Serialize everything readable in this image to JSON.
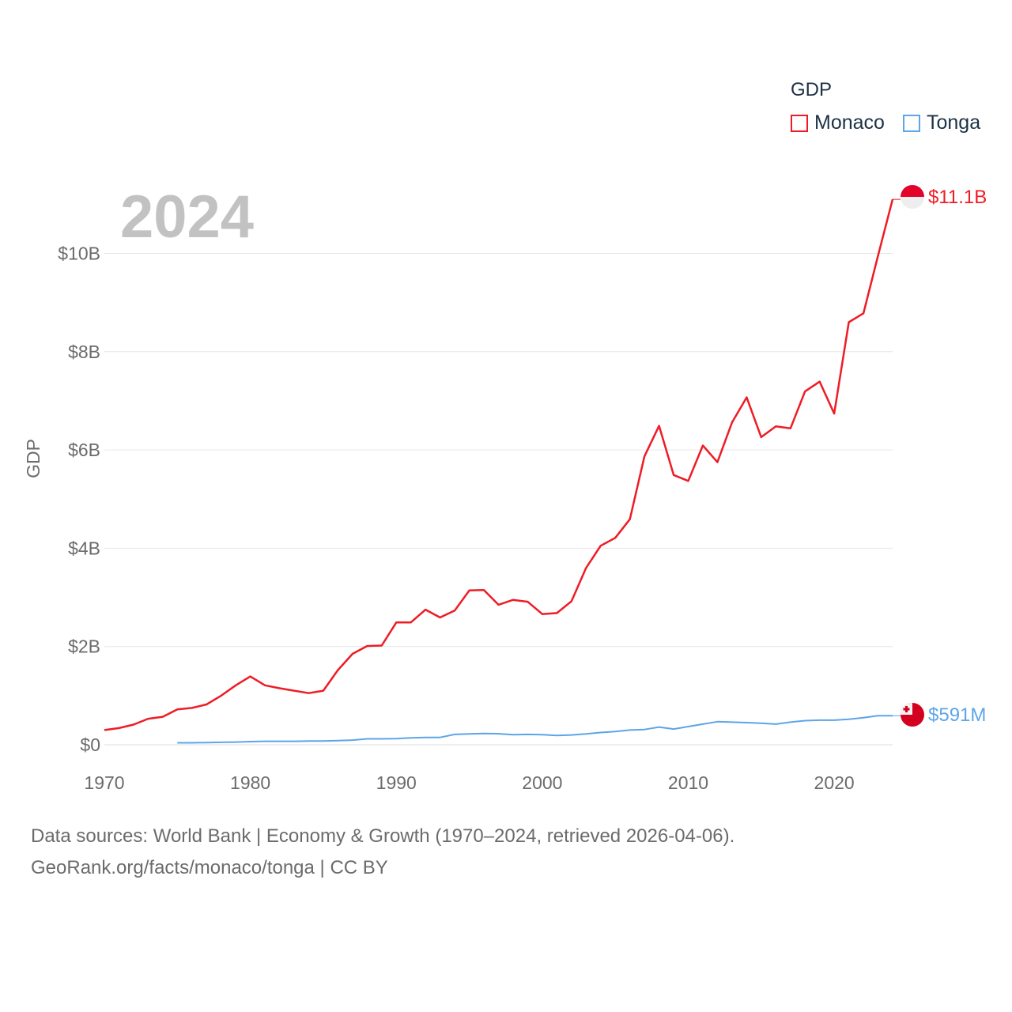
{
  "legend": {
    "title": "GDP",
    "items": [
      {
        "label": "Monaco",
        "color": "#ee1c25"
      },
      {
        "label": "Tonga",
        "color": "#5da5e8"
      }
    ]
  },
  "footer": {
    "line1": "Data sources: World Bank | Economy & Growth (1970–2024, retrieved 2026-04-06).",
    "line2": "GeoRank.org/facts/monaco/tonga | CC BY"
  },
  "chart_data": {
    "type": "line",
    "title": "GDP",
    "year_label": "2024",
    "ylabel": "GDP",
    "xlabel": "",
    "xlim": [
      1970,
      2024
    ],
    "ylim": [
      0,
      11.5
    ],
    "x_ticks": [
      "1970",
      "1980",
      "1990",
      "2000",
      "2010",
      "2020"
    ],
    "y_ticks": [
      {
        "value": 0,
        "label": "$0"
      },
      {
        "value": 2,
        "label": "$2B"
      },
      {
        "value": 4,
        "label": "$4B"
      },
      {
        "value": 6,
        "label": "$6B"
      },
      {
        "value": 8,
        "label": "$8B"
      },
      {
        "value": 10,
        "label": "$10B"
      }
    ],
    "grid": true,
    "units": "billions USD",
    "series": [
      {
        "name": "Monaco",
        "color": "#ee1c25",
        "end_label": "$11.1B",
        "x": [
          1970,
          1971,
          1972,
          1973,
          1974,
          1975,
          1976,
          1977,
          1978,
          1979,
          1980,
          1981,
          1982,
          1983,
          1984,
          1985,
          1986,
          1987,
          1988,
          1989,
          1990,
          1991,
          1992,
          1993,
          1994,
          1995,
          1996,
          1997,
          1998,
          1999,
          2000,
          2001,
          2002,
          2003,
          2004,
          2005,
          2006,
          2007,
          2008,
          2009,
          2010,
          2011,
          2012,
          2013,
          2014,
          2015,
          2016,
          2017,
          2018,
          2019,
          2020,
          2021,
          2022,
          2023,
          2024
        ],
        "values": [
          0.3,
          0.34,
          0.41,
          0.53,
          0.57,
          0.72,
          0.75,
          0.82,
          1.0,
          1.21,
          1.39,
          1.21,
          1.15,
          1.1,
          1.05,
          1.1,
          1.52,
          1.85,
          2.01,
          2.02,
          2.49,
          2.49,
          2.75,
          2.59,
          2.73,
          3.14,
          3.15,
          2.85,
          2.95,
          2.91,
          2.66,
          2.68,
          2.92,
          3.6,
          4.05,
          4.21,
          4.59,
          5.87,
          6.49,
          5.49,
          5.37,
          6.09,
          5.75,
          6.56,
          7.07,
          6.26,
          6.48,
          6.44,
          7.19,
          7.39,
          6.74,
          8.6,
          8.78,
          9.95,
          11.1
        ]
      },
      {
        "name": "Tonga",
        "color": "#5da5e8",
        "end_label": "$591M",
        "x": [
          1975,
          1976,
          1977,
          1978,
          1979,
          1980,
          1981,
          1982,
          1983,
          1984,
          1985,
          1986,
          1987,
          1988,
          1989,
          1990,
          1991,
          1992,
          1993,
          1994,
          1995,
          1996,
          1997,
          1998,
          1999,
          2000,
          2001,
          2002,
          2003,
          2004,
          2005,
          2006,
          2007,
          2008,
          2009,
          2010,
          2011,
          2012,
          2013,
          2014,
          2015,
          2016,
          2017,
          2018,
          2019,
          2020,
          2021,
          2022,
          2023,
          2024
        ],
        "values": [
          0.04,
          0.04,
          0.045,
          0.05,
          0.055,
          0.065,
          0.07,
          0.07,
          0.07,
          0.075,
          0.075,
          0.085,
          0.095,
          0.12,
          0.12,
          0.125,
          0.14,
          0.15,
          0.15,
          0.21,
          0.22,
          0.23,
          0.225,
          0.205,
          0.21,
          0.205,
          0.19,
          0.2,
          0.22,
          0.25,
          0.27,
          0.3,
          0.31,
          0.36,
          0.32,
          0.37,
          0.42,
          0.47,
          0.46,
          0.45,
          0.44,
          0.42,
          0.46,
          0.49,
          0.5,
          0.5,
          0.52,
          0.55,
          0.59,
          0.591
        ]
      }
    ]
  }
}
